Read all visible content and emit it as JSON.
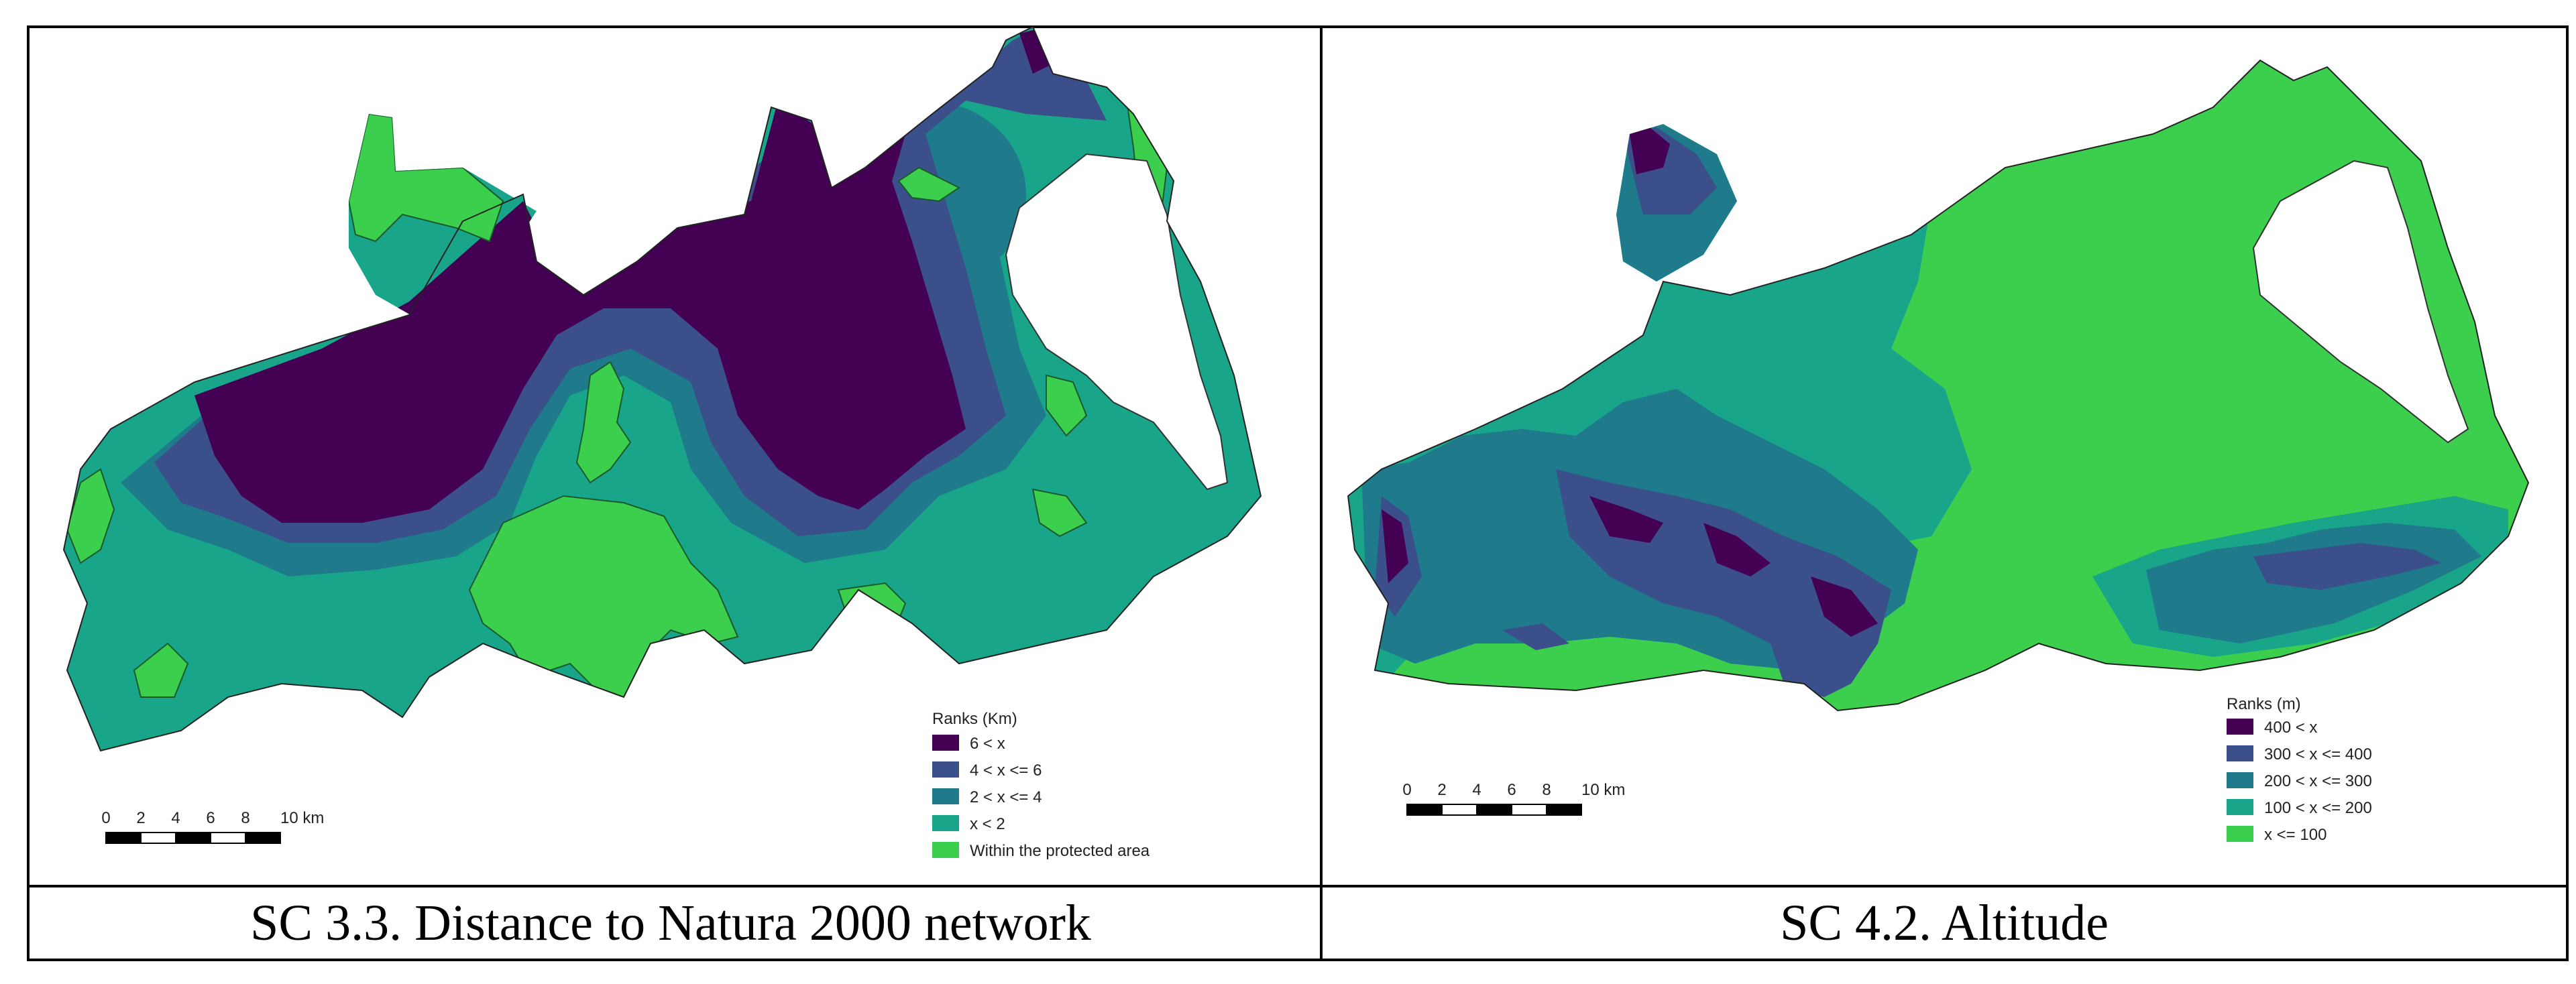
{
  "colors": {
    "rank1": "#440154",
    "rank2": "#3b4f8a",
    "rank3": "#1f7a8c",
    "rank4": "#18a58a",
    "rank5": "#3ccf4e",
    "frame": "#000000",
    "water": "#ffffff"
  },
  "panels": [
    {
      "caption": "SC 3.3. Distance to Natura 2000 network",
      "legend_title": "Ranks (Km)",
      "legend": [
        "6 < x",
        "4 < x <= 6",
        "2 < x <= 4",
        "x < 2",
        "Within the protected area"
      ],
      "scale_ticks": [
        "0",
        "2",
        "4",
        "6",
        "8",
        "10 km"
      ]
    },
    {
      "caption": "SC 4.2. Altitude",
      "legend_title": "Ranks (m)",
      "legend": [
        "400 < x",
        "300 < x <= 400",
        "200 < x <= 300",
        "100 < x <= 200",
        "x <= 100"
      ],
      "scale_ticks": [
        "0",
        "2",
        "4",
        "6",
        "8",
        "10 km"
      ]
    }
  ]
}
